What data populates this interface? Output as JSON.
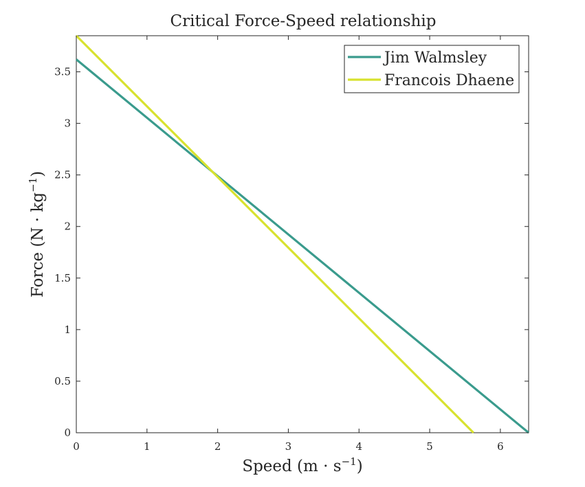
{
  "chart_data": {
    "type": "line",
    "title": "Critical Force-Speed relationship",
    "xlabel": {
      "main": "Speed (m · s",
      "sup": "−1",
      "close": ")"
    },
    "ylabel": {
      "main": "Force (N · kg",
      "sup": "−1",
      "close": ")"
    },
    "xlim": [
      0,
      6.4
    ],
    "ylim": [
      0,
      3.85
    ],
    "xticks": [
      0,
      1,
      2,
      3,
      4,
      5,
      6
    ],
    "xtick_labels": [
      "0",
      "1",
      "2",
      "3",
      "4",
      "5",
      "6"
    ],
    "yticks": [
      0,
      0.5,
      1,
      1.5,
      2,
      2.5,
      3,
      3.5
    ],
    "ytick_labels": [
      "0",
      "0.5",
      "1",
      "1.5",
      "2",
      "2.5",
      "3",
      "3.5"
    ],
    "grid": false,
    "legend_position": "top-right",
    "series": [
      {
        "name": "Jim Walmsley",
        "color": "#3a9b8d",
        "x": [
          0,
          6.4
        ],
        "y": [
          3.62,
          0
        ]
      },
      {
        "name": "Francois Dhaene",
        "color": "#d8e22e",
        "x": [
          0,
          5.62
        ],
        "y": [
          3.85,
          0
        ]
      }
    ]
  }
}
